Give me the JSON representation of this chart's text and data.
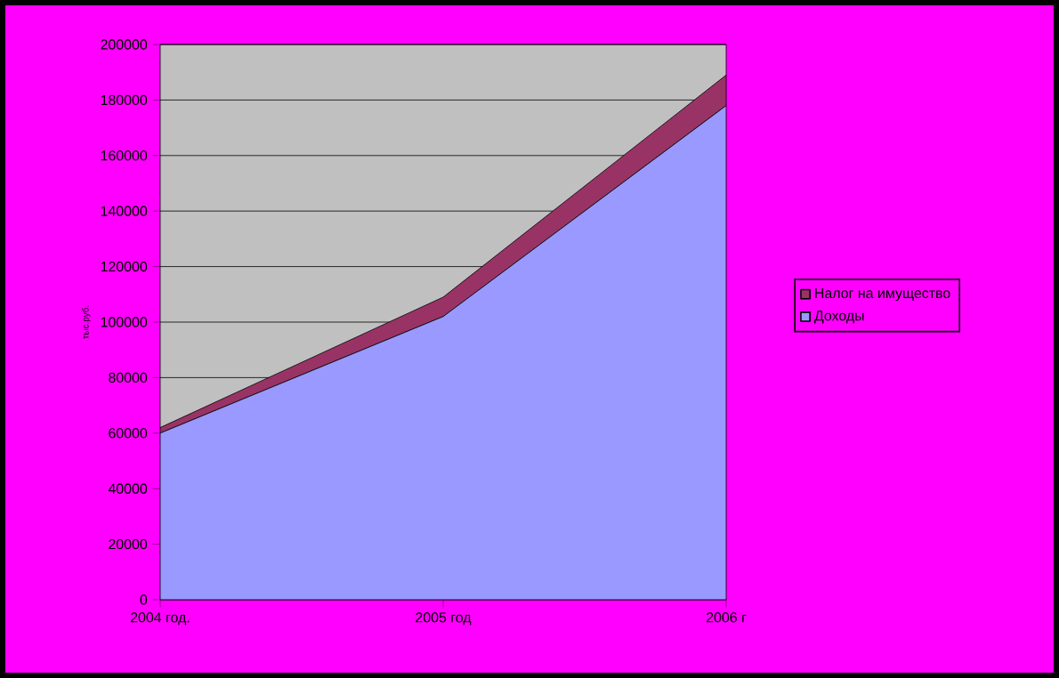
{
  "chart_data": {
    "type": "area",
    "stacked": true,
    "ylabel": "тыс.руб.",
    "categories": [
      "2004 год.",
      "2005 год",
      "2006 г"
    ],
    "series": [
      {
        "name": "Доходы",
        "color": "#9999ff",
        "values": [
          60000,
          102000,
          178000
        ]
      },
      {
        "name": "Налог на имущество",
        "color": "#993366",
        "values": [
          2000,
          7000,
          11000
        ]
      }
    ],
    "ylim": [
      0,
      200000
    ],
    "yticks": [
      0,
      20000,
      40000,
      60000,
      80000,
      100000,
      120000,
      140000,
      160000,
      180000,
      200000
    ],
    "grid": "y",
    "legend": "right"
  }
}
